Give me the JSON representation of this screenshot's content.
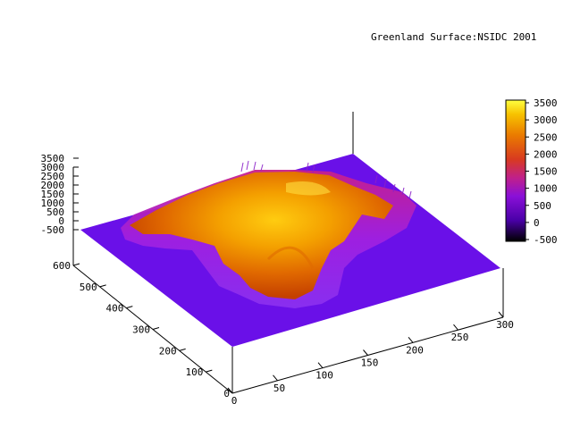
{
  "chart_data": {
    "type": "surface3d",
    "title": "Greenland Surface:NSIDC 2001",
    "xlabel": "",
    "ylabel": "",
    "zlabel": "",
    "x_ticks": [
      0,
      50,
      100,
      150,
      200,
      250,
      300
    ],
    "y_ticks": [
      100,
      200,
      300,
      400,
      500,
      600
    ],
    "z_ticks": [
      -500,
      0,
      500,
      1000,
      1500,
      2000,
      2500,
      3000,
      3500
    ],
    "colorbar_ticks": [
      -500,
      0,
      500,
      1000,
      1500,
      2000,
      2500,
      3000,
      3500
    ],
    "xlim": [
      0,
      300
    ],
    "ylim": [
      0,
      600
    ],
    "zlim": [
      -500,
      3500
    ],
    "colormap": "black-purple-red-orange-yellow (gnuplot pm3d)",
    "ground_level": -500,
    "surface_summary": {
      "max_elevation": 3200,
      "ocean_value": -500
    }
  }
}
